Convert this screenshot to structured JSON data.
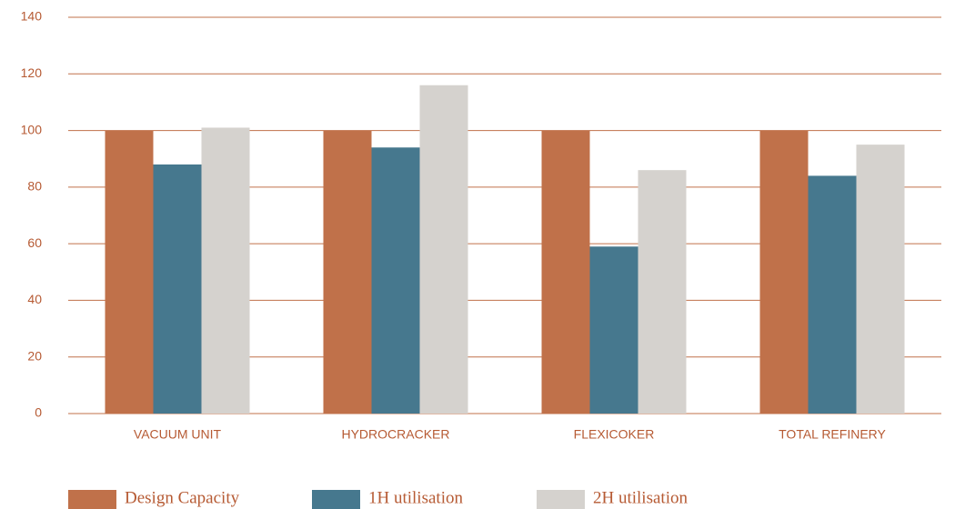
{
  "chart_data": {
    "type": "bar",
    "categories": [
      "VACUUM UNIT",
      "HYDROCRACKER",
      "FLEXICOKER",
      "TOTAL REFINERY"
    ],
    "series": [
      {
        "name": "Design Capacity",
        "color": "#c0714a",
        "values": [
          100,
          100,
          100,
          100
        ]
      },
      {
        "name": "1H utilisation",
        "color": "#46788e",
        "values": [
          88,
          94,
          59,
          84
        ]
      },
      {
        "name": "2H utilisation",
        "color": "#d5d2ce",
        "values": [
          101,
          116,
          86,
          95
        ]
      }
    ],
    "ylim": [
      0,
      140
    ],
    "yticks": [
      0,
      20,
      40,
      60,
      80,
      100,
      120,
      140
    ],
    "grid": true,
    "legend": "bottom"
  }
}
